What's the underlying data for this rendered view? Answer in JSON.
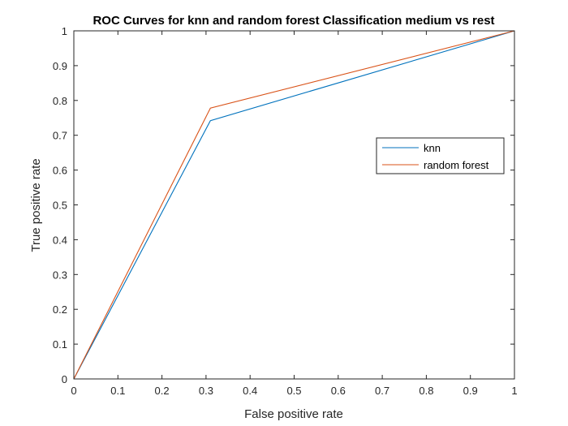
{
  "chart_data": {
    "type": "line",
    "title": "ROC Curves for knn and random forest Classification medium vs rest",
    "xlabel": "False positive rate",
    "ylabel": "True positive rate",
    "xlim": [
      0,
      1
    ],
    "ylim": [
      0,
      1
    ],
    "xticks": [
      "0",
      "0.1",
      "0.2",
      "0.3",
      "0.4",
      "0.5",
      "0.6",
      "0.7",
      "0.8",
      "0.9",
      "1"
    ],
    "yticks": [
      "0",
      "0.1",
      "0.2",
      "0.3",
      "0.4",
      "0.5",
      "0.6",
      "0.7",
      "0.8",
      "0.9",
      "1"
    ],
    "grid": false,
    "legend_position": "upper-right",
    "series": [
      {
        "name": "knn",
        "color": "#0072BD",
        "x": [
          0,
          0.31,
          1
        ],
        "y": [
          0,
          0.742,
          1
        ]
      },
      {
        "name": "random forest",
        "color": "#D95319",
        "x": [
          0,
          0.31,
          1
        ],
        "y": [
          0,
          0.778,
          1
        ]
      }
    ]
  }
}
